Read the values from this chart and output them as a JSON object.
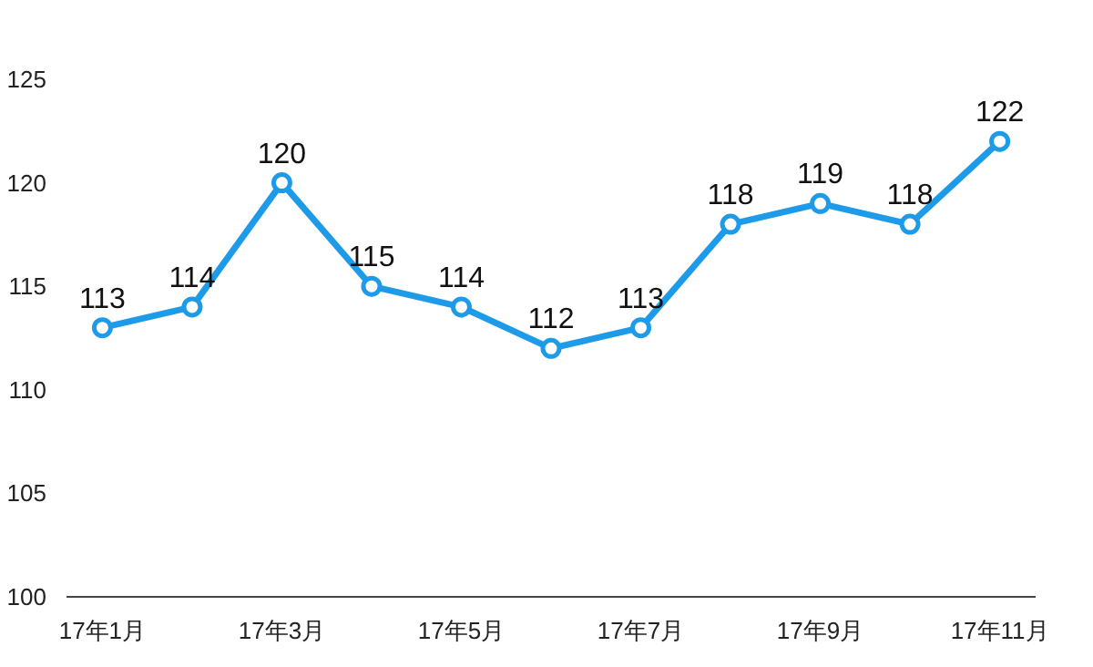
{
  "chart_data": {
    "type": "line",
    "categories": [
      "17年1月",
      null,
      "17年3月",
      null,
      "17年5月",
      null,
      "17年7月",
      null,
      "17年9月",
      null,
      "17年11月"
    ],
    "values": [
      113,
      114,
      120,
      115,
      114,
      112,
      113,
      118,
      119,
      118,
      122
    ],
    "color": "#1e9be8",
    "ylim": [
      100,
      125
    ],
    "yticks": [
      100,
      105,
      110,
      115,
      120,
      125
    ],
    "marker": "circle",
    "line_style": "solid",
    "data_labels": true
  }
}
